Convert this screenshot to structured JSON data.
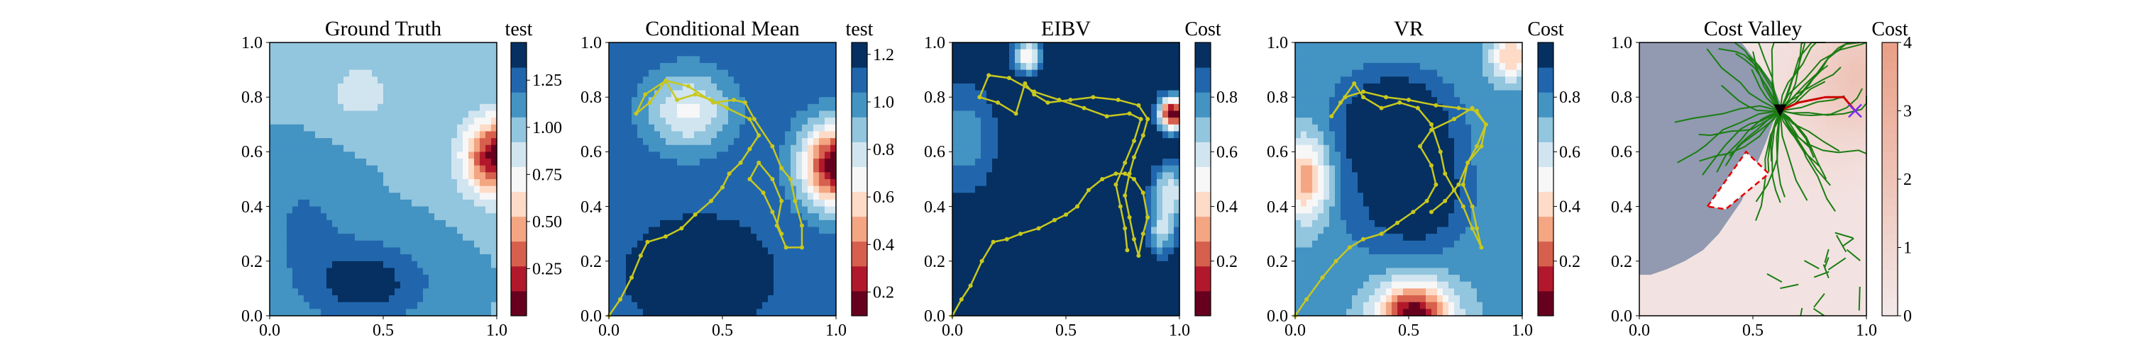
{
  "chart_data": [
    {
      "type": "heatmap",
      "title": "Ground Truth",
      "colorbar_label": "test",
      "colormap": "RdBu",
      "xlim": [
        0.0,
        1.0
      ],
      "ylim": [
        0.0,
        1.0
      ],
      "x_ticks": [
        "0.0",
        "0.5",
        "1.0"
      ],
      "y_ticks": [
        "0.0",
        "0.2",
        "0.4",
        "0.6",
        "0.8",
        "1.0"
      ],
      "colorbar_range": [
        0.0,
        1.45
      ],
      "colorbar_ticks": [
        "0.25",
        "0.50",
        "0.75",
        "1.00",
        "1.25"
      ],
      "colorbar_tick_values": [
        0.25,
        0.5,
        0.75,
        1.0,
        1.25
      ],
      "field": {
        "base": 1.05,
        "features": [
          {
            "x": 1.0,
            "y": 0.58,
            "sx": 0.14,
            "sy": 0.14,
            "amp": -1.0
          },
          {
            "x": 0.42,
            "y": 0.12,
            "sx": 0.28,
            "sy": 0.15,
            "amp": 0.35
          },
          {
            "x": 0.15,
            "y": 0.35,
            "sx": 0.2,
            "sy": 0.2,
            "amp": 0.15
          },
          {
            "x": 0.4,
            "y": 0.82,
            "sx": 0.15,
            "sy": 0.12,
            "amp": -0.2
          }
        ]
      }
    },
    {
      "type": "heatmap",
      "title": "Conditional Mean",
      "colorbar_label": "test",
      "colormap": "RdBu",
      "xlim": [
        0.0,
        1.0
      ],
      "ylim": [
        0.0,
        1.0
      ],
      "x_ticks": [
        "0.0",
        "0.5",
        "1.0"
      ],
      "y_ticks": [
        "0.0",
        "0.2",
        "0.4",
        "0.6",
        "0.8",
        "1.0"
      ],
      "colorbar_range": [
        0.1,
        1.25
      ],
      "colorbar_ticks": [
        "0.2",
        "0.4",
        "0.6",
        "0.8",
        "1.0",
        "1.2"
      ],
      "colorbar_tick_values": [
        0.2,
        0.4,
        0.6,
        0.8,
        1.0,
        1.2
      ],
      "field": {
        "base": 1.1,
        "features": [
          {
            "x": 1.0,
            "y": 0.55,
            "sx": 0.15,
            "sy": 0.15,
            "amp": -1.0
          },
          {
            "x": 0.35,
            "y": 0.75,
            "sx": 0.18,
            "sy": 0.14,
            "amp": -0.4
          },
          {
            "x": 0.4,
            "y": 0.15,
            "sx": 0.3,
            "sy": 0.2,
            "amp": 0.15
          }
        ]
      },
      "path": [
        [
          0.0,
          0.0
        ],
        [
          0.05,
          0.06
        ],
        [
          0.1,
          0.14
        ],
        [
          0.14,
          0.22
        ],
        [
          0.17,
          0.27
        ],
        [
          0.25,
          0.29
        ],
        [
          0.32,
          0.32
        ],
        [
          0.38,
          0.37
        ],
        [
          0.45,
          0.42
        ],
        [
          0.5,
          0.47
        ],
        [
          0.53,
          0.52
        ],
        [
          0.58,
          0.56
        ],
        [
          0.62,
          0.61
        ],
        [
          0.66,
          0.66
        ],
        [
          0.62,
          0.72
        ],
        [
          0.52,
          0.76
        ],
        [
          0.45,
          0.79
        ],
        [
          0.38,
          0.81
        ],
        [
          0.3,
          0.79
        ],
        [
          0.25,
          0.86
        ],
        [
          0.18,
          0.78
        ],
        [
          0.12,
          0.74
        ],
        [
          0.16,
          0.81
        ],
        [
          0.25,
          0.86
        ],
        [
          0.35,
          0.84
        ],
        [
          0.46,
          0.78
        ],
        [
          0.55,
          0.79
        ],
        [
          0.6,
          0.78
        ],
        [
          0.64,
          0.72
        ],
        [
          0.72,
          0.62
        ],
        [
          0.76,
          0.54
        ],
        [
          0.8,
          0.5
        ],
        [
          0.82,
          0.42
        ],
        [
          0.85,
          0.33
        ],
        [
          0.85,
          0.25
        ],
        [
          0.78,
          0.25
        ],
        [
          0.74,
          0.33
        ],
        [
          0.76,
          0.42
        ],
        [
          0.72,
          0.5
        ],
        [
          0.66,
          0.56
        ],
        [
          0.62,
          0.5
        ],
        [
          0.68,
          0.45
        ],
        [
          0.72,
          0.38
        ],
        [
          0.76,
          0.3
        ]
      ]
    },
    {
      "type": "heatmap",
      "title": "EIBV",
      "colorbar_label": "Cost",
      "colormap": "RdBu",
      "xlim": [
        0.0,
        1.0
      ],
      "ylim": [
        0.0,
        1.0
      ],
      "x_ticks": [
        "0.0",
        "0.5",
        "1.0"
      ],
      "y_ticks": [
        "0.0",
        "0.2",
        "0.4",
        "0.6",
        "0.8",
        "1.0"
      ],
      "colorbar_range": [
        0.0,
        1.0
      ],
      "colorbar_ticks": [
        "0.2",
        "0.4",
        "0.6",
        "0.8"
      ],
      "colorbar_tick_values": [
        0.2,
        0.4,
        0.6,
        0.8
      ],
      "field": {
        "base": 1.0,
        "features": [
          {
            "x": 0.97,
            "y": 0.74,
            "sx": 0.06,
            "sy": 0.06,
            "amp": -1.0
          },
          {
            "x": 0.33,
            "y": 0.95,
            "sx": 0.06,
            "sy": 0.06,
            "amp": -0.55
          },
          {
            "x": 0.96,
            "y": 0.45,
            "sx": 0.08,
            "sy": 0.1,
            "amp": -0.45
          },
          {
            "x": 0.92,
            "y": 0.3,
            "sx": 0.06,
            "sy": 0.08,
            "amp": -0.35
          },
          {
            "x": 0.05,
            "y": 0.65,
            "sx": 0.15,
            "sy": 0.2,
            "amp": -0.25
          }
        ]
      },
      "path": [
        [
          0.0,
          0.0
        ],
        [
          0.04,
          0.06
        ],
        [
          0.08,
          0.11
        ],
        [
          0.13,
          0.2
        ],
        [
          0.18,
          0.27
        ],
        [
          0.24,
          0.28
        ],
        [
          0.3,
          0.3
        ],
        [
          0.38,
          0.32
        ],
        [
          0.45,
          0.35
        ],
        [
          0.5,
          0.37
        ],
        [
          0.55,
          0.4
        ],
        [
          0.6,
          0.46
        ],
        [
          0.66,
          0.5
        ],
        [
          0.72,
          0.52
        ],
        [
          0.76,
          0.52
        ],
        [
          0.8,
          0.5
        ],
        [
          0.84,
          0.45
        ],
        [
          0.86,
          0.36
        ],
        [
          0.84,
          0.3
        ],
        [
          0.82,
          0.22
        ],
        [
          0.8,
          0.28
        ],
        [
          0.78,
          0.36
        ],
        [
          0.76,
          0.44
        ],
        [
          0.78,
          0.52
        ],
        [
          0.8,
          0.58
        ],
        [
          0.84,
          0.66
        ],
        [
          0.86,
          0.72
        ],
        [
          0.82,
          0.77
        ],
        [
          0.73,
          0.79
        ],
        [
          0.62,
          0.8
        ],
        [
          0.52,
          0.79
        ],
        [
          0.42,
          0.78
        ],
        [
          0.36,
          0.81
        ],
        [
          0.32,
          0.85
        ],
        [
          0.28,
          0.74
        ],
        [
          0.2,
          0.78
        ],
        [
          0.12,
          0.8
        ],
        [
          0.16,
          0.88
        ],
        [
          0.25,
          0.87
        ],
        [
          0.36,
          0.82
        ],
        [
          0.47,
          0.79
        ],
        [
          0.58,
          0.76
        ],
        [
          0.68,
          0.73
        ],
        [
          0.78,
          0.74
        ],
        [
          0.83,
          0.72
        ],
        [
          0.8,
          0.64
        ],
        [
          0.76,
          0.56
        ],
        [
          0.72,
          0.48
        ],
        [
          0.74,
          0.4
        ],
        [
          0.76,
          0.32
        ],
        [
          0.77,
          0.24
        ]
      ]
    },
    {
      "type": "heatmap",
      "title": "VR",
      "colorbar_label": "Cost",
      "colormap": "RdBu",
      "xlim": [
        0.0,
        1.0
      ],
      "ylim": [
        0.0,
        1.0
      ],
      "x_ticks": [
        "0.0",
        "0.5",
        "1.0"
      ],
      "y_ticks": [
        "0.0",
        "0.2",
        "0.4",
        "0.6",
        "0.8",
        "1.0"
      ],
      "colorbar_range": [
        0.0,
        1.0
      ],
      "colorbar_ticks": [
        "0.2",
        "0.4",
        "0.6",
        "0.8"
      ],
      "colorbar_tick_values": [
        0.2,
        0.4,
        0.6,
        0.8
      ],
      "field": {
        "base": 0.75,
        "features": [
          {
            "x": 0.52,
            "y": 0.0,
            "sx": 0.16,
            "sy": 0.12,
            "amp": -0.75
          },
          {
            "x": 0.05,
            "y": 0.5,
            "sx": 0.1,
            "sy": 0.15,
            "amp": -0.45
          },
          {
            "x": 0.95,
            "y": 0.95,
            "sx": 0.08,
            "sy": 0.08,
            "amp": -0.4
          },
          {
            "x": 0.45,
            "y": 0.72,
            "sx": 0.22,
            "sy": 0.16,
            "amp": 0.35
          },
          {
            "x": 0.55,
            "y": 0.45,
            "sx": 0.2,
            "sy": 0.2,
            "amp": 0.3
          },
          {
            "x": 0.3,
            "y": 0.5,
            "sx": 0.2,
            "sy": 0.3,
            "amp": 0.1
          }
        ]
      },
      "path": [
        [
          0.0,
          0.0
        ],
        [
          0.05,
          0.06
        ],
        [
          0.12,
          0.14
        ],
        [
          0.18,
          0.2
        ],
        [
          0.24,
          0.25
        ],
        [
          0.3,
          0.28
        ],
        [
          0.38,
          0.3
        ],
        [
          0.45,
          0.34
        ],
        [
          0.52,
          0.38
        ],
        [
          0.58,
          0.42
        ],
        [
          0.62,
          0.48
        ],
        [
          0.6,
          0.55
        ],
        [
          0.55,
          0.62
        ],
        [
          0.6,
          0.68
        ],
        [
          0.7,
          0.72
        ],
        [
          0.78,
          0.76
        ],
        [
          0.84,
          0.7
        ],
        [
          0.8,
          0.62
        ],
        [
          0.76,
          0.56
        ],
        [
          0.74,
          0.48
        ],
        [
          0.78,
          0.4
        ],
        [
          0.8,
          0.32
        ],
        [
          0.82,
          0.25
        ],
        [
          0.78,
          0.32
        ],
        [
          0.74,
          0.4
        ],
        [
          0.7,
          0.46
        ],
        [
          0.66,
          0.52
        ],
        [
          0.64,
          0.6
        ],
        [
          0.6,
          0.7
        ],
        [
          0.54,
          0.76
        ],
        [
          0.46,
          0.78
        ],
        [
          0.38,
          0.76
        ],
        [
          0.3,
          0.8
        ],
        [
          0.26,
          0.85
        ],
        [
          0.2,
          0.78
        ],
        [
          0.16,
          0.73
        ],
        [
          0.22,
          0.8
        ],
        [
          0.3,
          0.82
        ],
        [
          0.4,
          0.8
        ],
        [
          0.5,
          0.79
        ],
        [
          0.62,
          0.77
        ],
        [
          0.72,
          0.76
        ],
        [
          0.8,
          0.75
        ],
        [
          0.84,
          0.7
        ],
        [
          0.82,
          0.62
        ],
        [
          0.76,
          0.56
        ],
        [
          0.72,
          0.48
        ],
        [
          0.66,
          0.42
        ],
        [
          0.6,
          0.38
        ]
      ]
    },
    {
      "type": "heatmap",
      "title": "Cost Valley",
      "colorbar_label": "Cost",
      "colormap": "Reds",
      "xlim": [
        0.0,
        1.0
      ],
      "ylim": [
        0.0,
        1.0
      ],
      "x_ticks": [
        "0.0",
        "0.5",
        "1.0"
      ],
      "y_ticks": [
        "0.0",
        "0.2",
        "0.4",
        "0.6",
        "0.8",
        "1.0"
      ],
      "colorbar_range": [
        0,
        4
      ],
      "colorbar_ticks": [
        "0",
        "1",
        "2",
        "3",
        "4"
      ],
      "colorbar_tick_values": [
        0,
        1,
        2,
        3,
        4
      ],
      "colors": {
        "low": "#f3e9ea",
        "high": "#ea9f86",
        "masked": "#8b96ad",
        "tree": "#1a7d12",
        "obstacle": "#e60000",
        "path": "#cc0000",
        "target": "#7a2cf2",
        "current": "#000000"
      },
      "field": {
        "base": 0.3,
        "features": [
          {
            "x": 1.0,
            "y": 0.9,
            "sx": 0.22,
            "sy": 0.2,
            "amp": 1.4
          },
          {
            "x": 0.85,
            "y": 0.75,
            "sx": 0.25,
            "sy": 0.25,
            "amp": 0.6
          }
        ]
      },
      "masked_region": [
        [
          0.0,
          1.0
        ],
        [
          0.45,
          1.0
        ],
        [
          0.58,
          0.86
        ],
        [
          0.62,
          0.78
        ],
        [
          0.56,
          0.64
        ],
        [
          0.5,
          0.52
        ],
        [
          0.45,
          0.42
        ],
        [
          0.35,
          0.3
        ],
        [
          0.28,
          0.24
        ],
        [
          0.2,
          0.2
        ],
        [
          0.12,
          0.17
        ],
        [
          0.05,
          0.15
        ],
        [
          0.0,
          0.15
        ]
      ],
      "obstacle": [
        [
          0.3,
          0.4
        ],
        [
          0.47,
          0.6
        ],
        [
          0.57,
          0.52
        ],
        [
          0.38,
          0.39
        ]
      ],
      "current_location": [
        0.62,
        0.75
      ],
      "target_location": [
        0.95,
        0.75
      ],
      "planned_path": [
        [
          0.62,
          0.75
        ],
        [
          0.7,
          0.78
        ],
        [
          0.82,
          0.8
        ],
        [
          0.9,
          0.8
        ],
        [
          0.95,
          0.75
        ]
      ]
    }
  ]
}
